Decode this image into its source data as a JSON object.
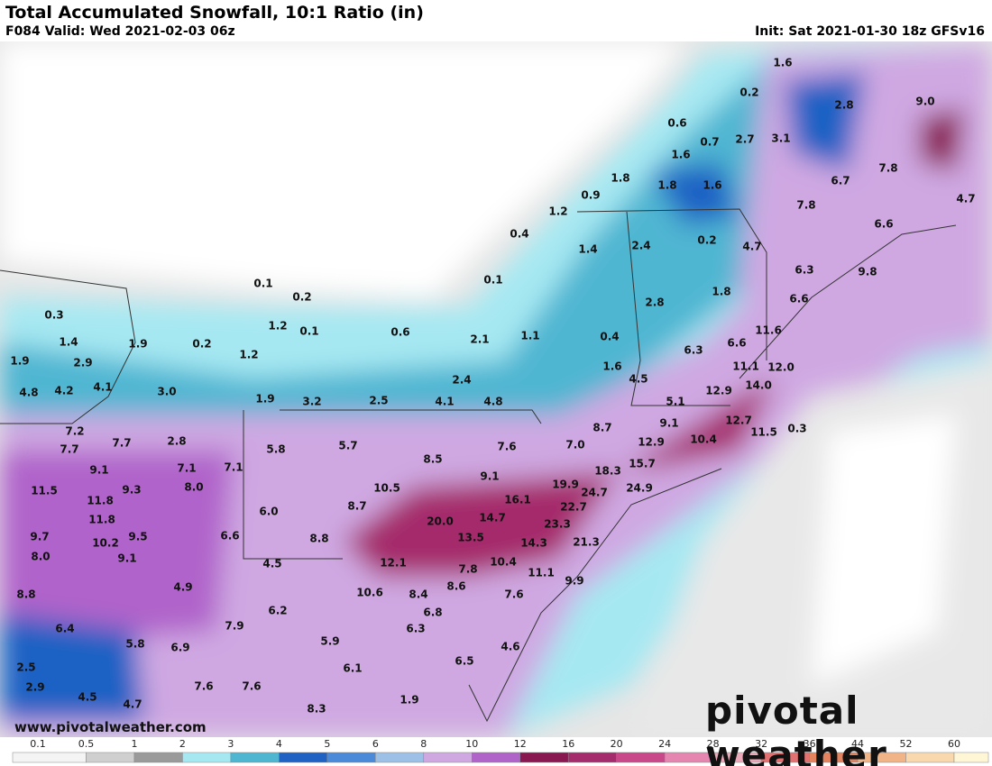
{
  "header": {
    "title": "Total Accumulated Snowfall, 10:1 Ratio (in)",
    "valid": "F084 Valid: Wed 2021-02-03 06z",
    "init": "Init: Sat 2021-01-30 18z GFSv16"
  },
  "map_labels": [
    "1.6",
    "0.2",
    "2.8",
    "9.0",
    "0.6",
    "0.7",
    "2.7",
    "3.1",
    "1.6",
    "7.8",
    "1.8",
    "1.8",
    "1.6",
    "6.7",
    "0.9",
    "4.7",
    "1.2",
    "7.8",
    "0.4",
    "1.4",
    "2.4",
    "0.2",
    "4.7",
    "6.6",
    "6.3",
    "9.8",
    "0.1",
    "0.2",
    "0.1",
    "1.8",
    "0.3",
    "1.2",
    "0.1",
    "2.8",
    "6.6",
    "0.6",
    "1.4",
    "1.9",
    "0.2",
    "2.1",
    "1.1",
    "0.4",
    "6.3",
    "6.6",
    "11.6",
    "1.2",
    "1.9",
    "2.9",
    "1.6",
    "4.5",
    "11.1",
    "12.0",
    "2.4",
    "4.8",
    "4.2",
    "4.1",
    "3.0",
    "1.9",
    "3.2",
    "2.5",
    "4.1",
    "4.8",
    "5.1",
    "12.9",
    "14.0",
    "9.1",
    "12.7",
    "8.7",
    "0.3",
    "7.2",
    "11.5",
    "7.7",
    "7.7",
    "2.8",
    "7.6",
    "7.0",
    "12.9",
    "10.4",
    "5.8",
    "5.7",
    "8.5",
    "9.1",
    "7.1",
    "7.1",
    "9.1",
    "18.3",
    "15.7",
    "19.9",
    "24.9",
    "24.7",
    "11.5",
    "8.0",
    "10.5",
    "9.3",
    "11.8",
    "16.1",
    "8.7",
    "22.7",
    "6.0",
    "11.8",
    "14.7",
    "20.0",
    "23.3",
    "9.7",
    "9.5",
    "10.2",
    "6.6",
    "8.8",
    "13.5",
    "21.3",
    "14.3",
    "8.0",
    "9.1",
    "4.5",
    "12.1",
    "10.4",
    "7.8",
    "11.1",
    "4.9",
    "10.6",
    "8.4",
    "8.6",
    "7.6",
    "9.9",
    "8.8",
    "6.2",
    "6.8",
    "6.4",
    "7.9",
    "6.3",
    "5.8",
    "6.9",
    "5.9",
    "4.6",
    "6.5",
    "2.5",
    "6.1",
    "2.9",
    "7.6",
    "7.6",
    "4.5",
    "4.7",
    "1.9",
    "8.3"
  ],
  "legend": {
    "labels": [
      "0.1",
      "0.5",
      "1",
      "2",
      "3",
      "4",
      "5",
      "6",
      "8",
      "10",
      "12",
      "16",
      "20",
      "24",
      "28",
      "32",
      "36",
      "44",
      "52",
      "60"
    ],
    "colors": [
      "#f4f4f4",
      "#cfcfcf",
      "#9a9a9a",
      "#a6e8f2",
      "#4fb6d2",
      "#1f62c4",
      "#4a8ad8",
      "#9cc0e6",
      "#cfa8e2",
      "#b064ca",
      "#8a1850",
      "#a52c6c",
      "#c8488a",
      "#e486b0",
      "#eaa8b8",
      "#e27272",
      "#e4845e",
      "#f0b486",
      "#f8d8ac",
      "#fff6d6"
    ]
  },
  "brand": {
    "site": "www.pivotalweather.com",
    "logo": "pivotal weather"
  }
}
